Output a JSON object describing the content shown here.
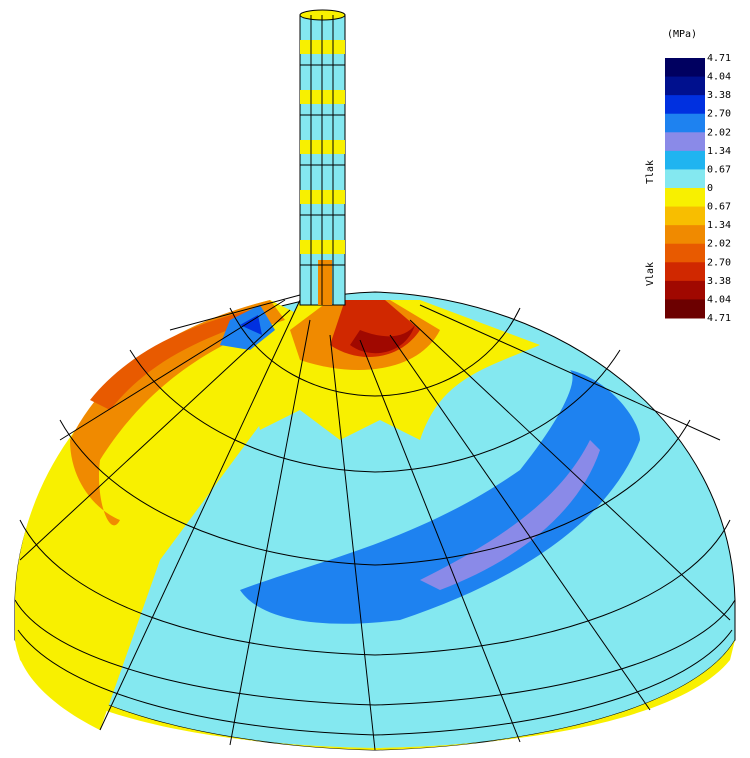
{
  "legend": {
    "unit": "(MPa)",
    "labels": [
      "4.71",
      "4.04",
      "3.38",
      "2.70",
      "2.02",
      "1.34",
      "0.67",
      "0",
      "0.67",
      "1.34",
      "2.02",
      "2.70",
      "3.38",
      "4.04",
      "4.71"
    ],
    "colors": [
      "#000060",
      "#00108e",
      "#0030e0",
      "#1e82f0",
      "#8a8ae8",
      "#20b4f0",
      "#84e8f0",
      "#f8f000",
      "#f8be00",
      "#f08a00",
      "#e85a00",
      "#d02800",
      "#a00800",
      "#6c0000"
    ],
    "sides": [
      "Tlak",
      "Vlak"
    ]
  }
}
